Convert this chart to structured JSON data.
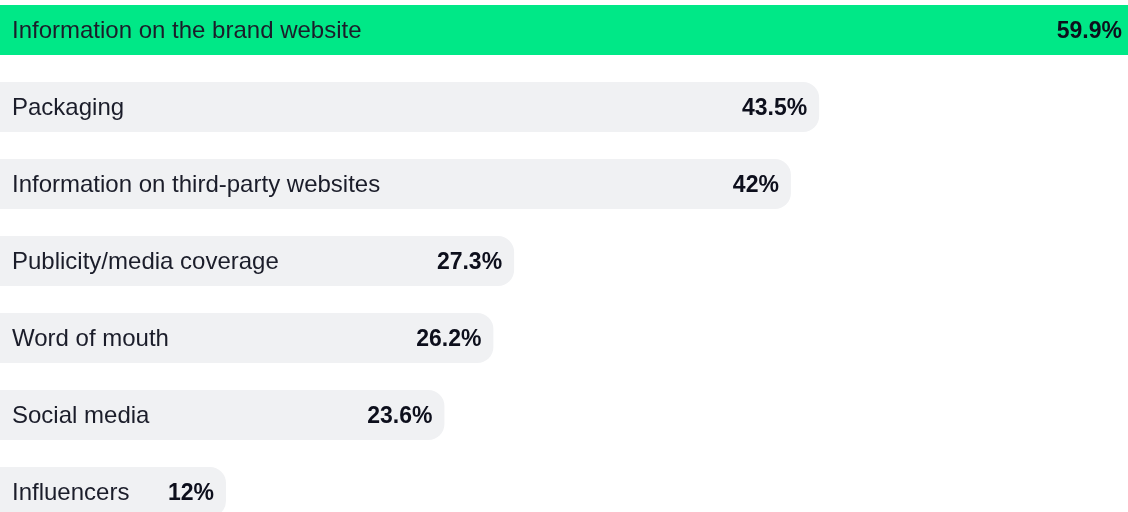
{
  "chart_data": {
    "type": "bar",
    "orientation": "horizontal",
    "categories": [
      "Information on the brand website",
      "Packaging",
      "Information on third-party websites",
      "Publicity/media coverage",
      "Word of mouth",
      "Social media",
      "Influencers"
    ],
    "values": [
      59.9,
      43.5,
      42,
      27.3,
      26.2,
      23.6,
      12
    ],
    "colors": [
      "#00e887",
      "#f0f1f3",
      "#f0f1f3",
      "#f0f1f3",
      "#f0f1f3",
      "#f0f1f3",
      "#f0f1f3"
    ],
    "value_labels": [
      "59.9%",
      "43.5%",
      "42%",
      "27.3%",
      "26.2%",
      "23.6%",
      "12%"
    ]
  }
}
